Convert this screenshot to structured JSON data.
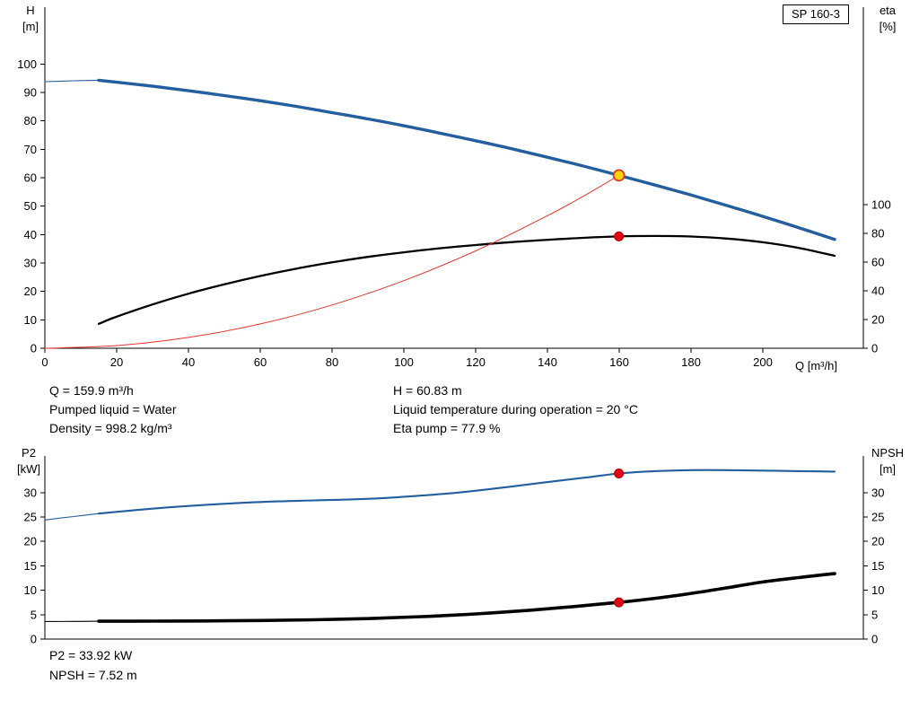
{
  "window": {
    "model_label": "SP 160-3"
  },
  "info_top": {
    "q": "Q = 159.9 m³/h",
    "h": "H = 60.83 m",
    "pumped_liquid": "Pumped liquid = Water",
    "temperature": "Liquid temperature during operation = 20 °C",
    "density": "Density = 998.2 kg/m³",
    "eta_pump": "Eta pump = 77.9 %"
  },
  "info_bottom": {
    "p2": "P2 = 33.92 kW",
    "npsh": "NPSH = 7.52 m"
  },
  "colors": {
    "curve_blue": "#235F9E",
    "curve_black": "#000000",
    "system_red": "#E5352B",
    "duty_yellow": "#FFD400",
    "marker_red": "#E30613"
  },
  "chart_data": [
    {
      "type": "line",
      "title": "Pump head and efficiency curve",
      "xlabel": "Q [m³/h]",
      "xlim": [
        0,
        228
      ],
      "x_ticks": [
        0,
        20,
        40,
        60,
        80,
        100,
        120,
        140,
        160,
        180,
        200
      ],
      "left_axis": {
        "label": "H [m]",
        "label_lines": [
          "H",
          "[m]"
        ],
        "lim": [
          0,
          120
        ],
        "ticks": [
          0,
          10,
          20,
          30,
          40,
          50,
          60,
          70,
          80,
          90,
          100
        ]
      },
      "right_axis": {
        "label": "eta [%]",
        "label_lines": [
          "eta",
          "[%]"
        ],
        "lim": [
          0,
          237.5
        ],
        "ticks": [
          0,
          20,
          40,
          60,
          80,
          100
        ]
      },
      "series": [
        {
          "name": "head-curve-min-flow",
          "axis": "left",
          "color": "#235F9E",
          "width": 1.1,
          "points": [
            [
              0,
              93.8
            ],
            [
              8,
              94.1
            ],
            [
              15,
              94.3
            ]
          ]
        },
        {
          "name": "head-curve",
          "axis": "left",
          "color": "#235F9E",
          "width": 3.4,
          "points": [
            [
              15,
              94.3
            ],
            [
              20,
              93.6
            ],
            [
              30,
              92.2
            ],
            [
              40,
              90.6
            ],
            [
              50,
              88.9
            ],
            [
              60,
              87.1
            ],
            [
              70,
              85.1
            ],
            [
              80,
              82.9
            ],
            [
              90,
              80.7
            ],
            [
              100,
              78.3
            ],
            [
              110,
              75.7
            ],
            [
              120,
              73.0
            ],
            [
              130,
              70.2
            ],
            [
              140,
              67.2
            ],
            [
              150,
              64.1
            ],
            [
              159.9,
              60.83
            ],
            [
              170,
              57.4
            ],
            [
              180,
              53.9
            ],
            [
              190,
              50.2
            ],
            [
              200,
              46.4
            ],
            [
              210,
              42.4
            ],
            [
              220,
              38.3
            ]
          ]
        },
        {
          "name": "efficiency-curve",
          "axis": "right",
          "color": "#000000",
          "width": 2.3,
          "points": [
            [
              15,
              17
            ],
            [
              20,
              22
            ],
            [
              30,
              30.5
            ],
            [
              40,
              38
            ],
            [
              50,
              44.5
            ],
            [
              60,
              50.3
            ],
            [
              70,
              55.4
            ],
            [
              80,
              59.8
            ],
            [
              90,
              63.6
            ],
            [
              100,
              66.8
            ],
            [
              110,
              69.6
            ],
            [
              120,
              71.9
            ],
            [
              130,
              73.9
            ],
            [
              140,
              75.5
            ],
            [
              150,
              76.9
            ],
            [
              159.9,
              77.9
            ],
            [
              170,
              78.2
            ],
            [
              180,
              77.8
            ],
            [
              190,
              76.4
            ],
            [
              200,
              73.8
            ],
            [
              210,
              69.9
            ],
            [
              220,
              64.4
            ]
          ]
        },
        {
          "name": "system-curve",
          "axis": "left",
          "color": "#E5352B",
          "width": 1.0,
          "points": [
            [
              0,
              0
            ],
            [
              20,
              0.95
            ],
            [
              40,
              3.81
            ],
            [
              60,
              8.56
            ],
            [
              80,
              15.23
            ],
            [
              100,
              23.79
            ],
            [
              120,
              34.26
            ],
            [
              140,
              46.63
            ],
            [
              150,
              53.5
            ],
            [
              159.9,
              60.83
            ]
          ]
        }
      ],
      "markers": [
        {
          "name": "duty-point",
          "axis": "left",
          "x": 159.9,
          "y": 60.83,
          "r": 6,
          "fill": "#FFD400",
          "stroke": "#E5352B",
          "stroke_width": 1.8,
          "interactable": true
        },
        {
          "name": "efficiency-point",
          "axis": "right",
          "x": 159.9,
          "y": 77.9,
          "r": 5,
          "fill": "#E30613",
          "stroke": "#B00000",
          "stroke_width": 1,
          "interactable": false
        }
      ]
    },
    {
      "type": "line",
      "title": "Power and NPSH curve",
      "xlabel": "",
      "xlim": [
        0,
        228
      ],
      "x_ticks": [],
      "left_axis": {
        "label": "P2 [kW]",
        "label_lines": [
          "P2",
          "[kW]"
        ],
        "lim": [
          0,
          37.5
        ],
        "ticks": [
          0,
          5,
          10,
          15,
          20,
          25,
          30
        ]
      },
      "right_axis": {
        "label": "NPSH [m]",
        "label_lines": [
          "NPSH",
          "[m]"
        ],
        "lim": [
          0,
          37.5
        ],
        "ticks": [
          0,
          5,
          10,
          15,
          20,
          25,
          30
        ]
      },
      "series": [
        {
          "name": "p2-curve-min-flow",
          "axis": "left",
          "color": "#235F9E",
          "width": 1.1,
          "points": [
            [
              0,
              24.4
            ],
            [
              8,
              25.1
            ],
            [
              15,
              25.7
            ]
          ]
        },
        {
          "name": "p2-curve",
          "axis": "left",
          "color": "#235F9E",
          "width": 2.1,
          "points": [
            [
              15,
              25.7
            ],
            [
              25,
              26.4
            ],
            [
              35,
              27.0
            ],
            [
              45,
              27.5
            ],
            [
              55,
              27.9
            ],
            [
              65,
              28.2
            ],
            [
              75,
              28.4
            ],
            [
              85,
              28.6
            ],
            [
              95,
              28.9
            ],
            [
              105,
              29.4
            ],
            [
              115,
              30.0
            ],
            [
              125,
              30.8
            ],
            [
              135,
              31.7
            ],
            [
              145,
              32.6
            ],
            [
              152,
              33.2
            ],
            [
              159.9,
              33.92
            ],
            [
              170,
              34.4
            ],
            [
              180,
              34.6
            ],
            [
              190,
              34.6
            ],
            [
              200,
              34.5
            ],
            [
              210,
              34.4
            ],
            [
              220,
              34.3
            ]
          ]
        },
        {
          "name": "npsh-curve-min-flow",
          "axis": "right",
          "color": "#000000",
          "width": 1.1,
          "points": [
            [
              0,
              3.6
            ],
            [
              8,
              3.62
            ],
            [
              15,
              3.65
            ]
          ]
        },
        {
          "name": "npsh-curve",
          "axis": "right",
          "color": "#000000",
          "width": 3.6,
          "points": [
            [
              15,
              3.65
            ],
            [
              30,
              3.68
            ],
            [
              45,
              3.72
            ],
            [
              60,
              3.8
            ],
            [
              75,
              3.95
            ],
            [
              90,
              4.2
            ],
            [
              105,
              4.6
            ],
            [
              120,
              5.15
            ],
            [
              135,
              5.9
            ],
            [
              148,
              6.7
            ],
            [
              159.9,
              7.52
            ],
            [
              170,
              8.35
            ],
            [
              180,
              9.35
            ],
            [
              190,
              10.5
            ],
            [
              200,
              11.7
            ],
            [
              210,
              12.6
            ],
            [
              220,
              13.4
            ]
          ]
        }
      ],
      "markers": [
        {
          "name": "p2-point",
          "axis": "left",
          "x": 159.9,
          "y": 33.92,
          "r": 5,
          "fill": "#E30613",
          "stroke": "#B00000",
          "stroke_width": 1,
          "interactable": false
        },
        {
          "name": "npsh-point",
          "axis": "right",
          "x": 159.9,
          "y": 7.52,
          "r": 5,
          "fill": "#E30613",
          "stroke": "#B00000",
          "stroke_width": 1,
          "interactable": false
        }
      ]
    }
  ]
}
